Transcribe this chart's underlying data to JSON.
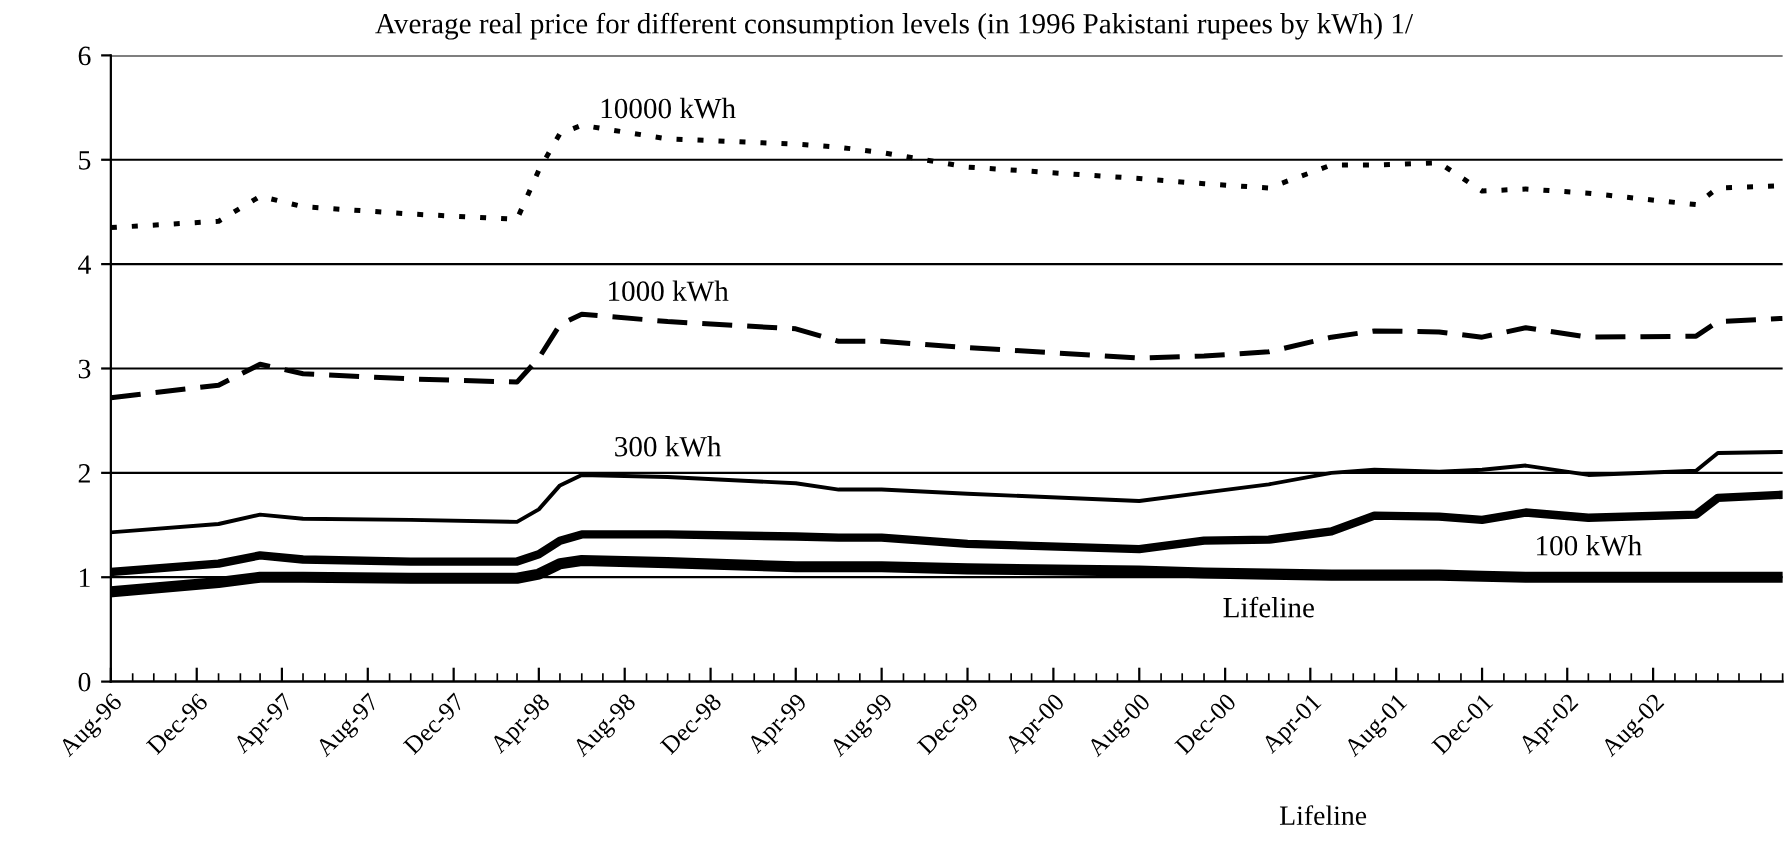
{
  "chart_data": {
    "type": "line",
    "title": "Average real price for different consumption levels (in 1996 Pakistani rupees by kWh) 1/",
    "x": [
      "1996-08",
      "1997-01",
      "1997-03",
      "1997-05",
      "1997-10",
      "1998-03",
      "1998-04",
      "1998-05",
      "1998-06",
      "1998-10",
      "1999-04",
      "1999-06",
      "1999-08",
      "1999-12",
      "2000-08",
      "2000-11",
      "2001-02",
      "2001-05",
      "2001-07",
      "2001-10",
      "2001-12",
      "2002-02",
      "2002-05",
      "2002-10",
      "2002-11",
      "2003-02"
    ],
    "series": [
      {
        "name": "10000 kWh",
        "color": "#000000",
        "line_style": "dotted",
        "values": [
          4.35,
          4.41,
          4.65,
          4.55,
          4.48,
          4.43,
          4.9,
          5.25,
          5.33,
          5.2,
          5.15,
          5.12,
          5.07,
          4.93,
          4.82,
          4.77,
          4.73,
          4.95,
          4.95,
          4.97,
          4.7,
          4.72,
          4.68,
          4.57,
          4.73,
          4.75
        ]
      },
      {
        "name": "1000 kWh",
        "color": "#000000",
        "line_style": "dashed",
        "values": [
          2.72,
          2.84,
          3.04,
          2.95,
          2.9,
          2.87,
          3.1,
          3.42,
          3.52,
          3.45,
          3.38,
          3.26,
          3.26,
          3.2,
          3.1,
          3.12,
          3.16,
          3.3,
          3.36,
          3.35,
          3.3,
          3.39,
          3.3,
          3.31,
          3.45,
          3.48
        ]
      },
      {
        "name": "300 kWh",
        "color": "#000000",
        "line_style": "solid",
        "values": [
          1.43,
          1.51,
          1.6,
          1.56,
          1.55,
          1.53,
          1.65,
          1.88,
          1.98,
          1.96,
          1.9,
          1.84,
          1.84,
          1.8,
          1.73,
          1.81,
          1.89,
          2.0,
          2.03,
          2.01,
          2.03,
          2.07,
          1.98,
          2.02,
          2.19,
          2.2
        ]
      },
      {
        "name": "100 kWh",
        "color": "#000000",
        "line_style": "solid",
        "values": [
          1.05,
          1.13,
          1.21,
          1.17,
          1.15,
          1.15,
          1.22,
          1.35,
          1.41,
          1.41,
          1.39,
          1.38,
          1.38,
          1.32,
          1.27,
          1.35,
          1.36,
          1.44,
          1.59,
          1.58,
          1.55,
          1.62,
          1.57,
          1.6,
          1.76,
          1.79
        ]
      },
      {
        "name": "Lifeline",
        "color": "#000000",
        "line_style": "solid",
        "values": [
          0.86,
          0.95,
          1.0,
          1.0,
          0.99,
          0.99,
          1.03,
          1.13,
          1.16,
          1.14,
          1.1,
          1.1,
          1.1,
          1.08,
          1.06,
          1.04,
          1.03,
          1.02,
          1.02,
          1.02,
          1.01,
          1.0,
          1.0,
          1.0,
          1.0,
          1.0
        ]
      }
    ],
    "annotations": [
      "Lifeline"
    ],
    "xlim": [
      "1996-08",
      "2003-02"
    ],
    "xticks": [
      {
        "value": "1996-08",
        "label": "Aug-96"
      },
      {
        "value": "1996-12",
        "label": "Dec-96"
      },
      {
        "value": "1997-04",
        "label": "Apr-97"
      },
      {
        "value": "1997-08",
        "label": "Aug-97"
      },
      {
        "value": "1997-12",
        "label": "Dec-97"
      },
      {
        "value": "1998-04",
        "label": "Apr-98"
      },
      {
        "value": "1998-08",
        "label": "Aug-98"
      },
      {
        "value": "1998-12",
        "label": "Dec-98"
      },
      {
        "value": "1999-04",
        "label": "Apr-99"
      },
      {
        "value": "1999-08",
        "label": "Aug-99"
      },
      {
        "value": "1999-12",
        "label": "Dec-99"
      },
      {
        "value": "2000-04",
        "label": "Apr-00"
      },
      {
        "value": "2000-08",
        "label": "Aug-00"
      },
      {
        "value": "2000-12",
        "label": "Dec-00"
      },
      {
        "value": "2001-04",
        "label": "Apr-01"
      },
      {
        "value": "2001-08",
        "label": "Aug-01"
      },
      {
        "value": "2001-12",
        "label": "Dec-01"
      },
      {
        "value": "2002-04",
        "label": "Apr-02"
      },
      {
        "value": "2002-08",
        "label": "Aug-02"
      }
    ],
    "ylim": [
      0,
      6
    ],
    "yticks": [
      0,
      1,
      2,
      3,
      4,
      5,
      6
    ],
    "grid": "y",
    "legend": false,
    "marker": "none"
  }
}
